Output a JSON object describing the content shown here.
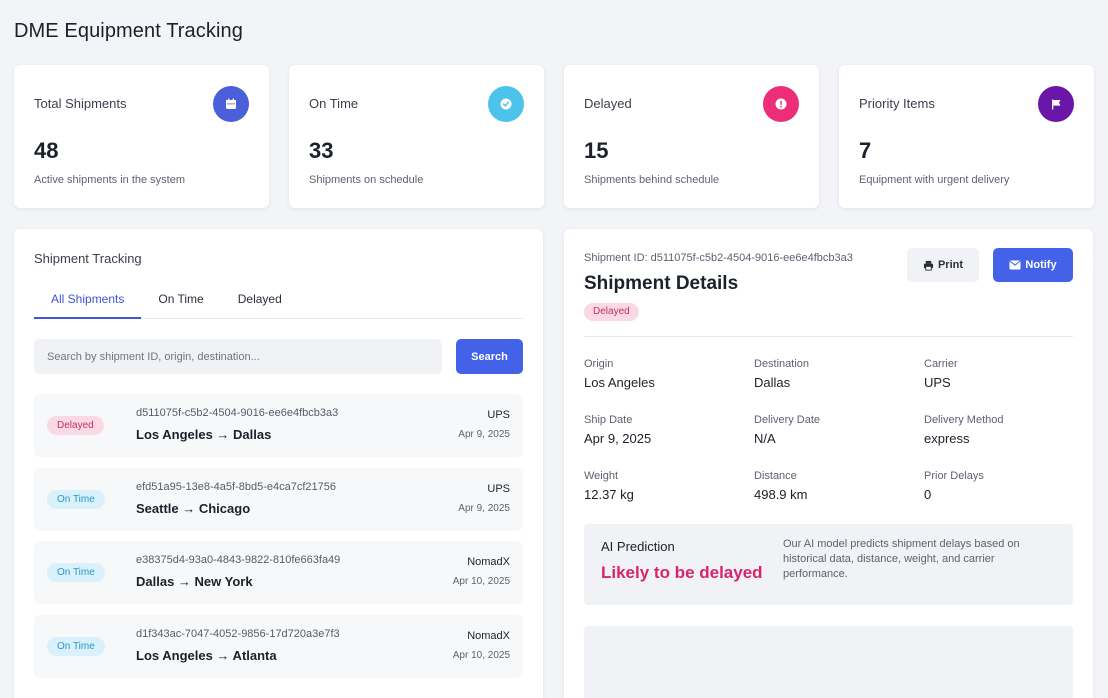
{
  "app": {
    "title": "DME Equipment Tracking"
  },
  "stats": [
    {
      "label": "Total Shipments",
      "value": "48",
      "desc": "Active shipments in the system",
      "icon": "calendar-icon",
      "color": "#4a5fd9"
    },
    {
      "label": "On Time",
      "value": "33",
      "desc": "Shipments on schedule",
      "icon": "check-circle-icon",
      "color": "#4cc3ea"
    },
    {
      "label": "Delayed",
      "value": "15",
      "desc": "Shipments behind schedule",
      "icon": "alert-circle-icon",
      "color": "#ec2e78"
    },
    {
      "label": "Priority Items",
      "value": "7",
      "desc": "Equipment with urgent delivery",
      "icon": "flag-icon",
      "color": "#6a16a8"
    }
  ],
  "tracking": {
    "title": "Shipment Tracking",
    "tabs": [
      "All Shipments",
      "On Time",
      "Delayed"
    ],
    "active_tab": "All Shipments",
    "search_placeholder": "Search by shipment ID, origin, destination...",
    "search_value": "",
    "search_button": "Search",
    "shipments": [
      {
        "status": "Delayed",
        "id": "d511075f-c5b2-4504-9016-ee6e4fbcb3a3",
        "route": "Los Angeles → Dallas",
        "carrier": "UPS",
        "date": "Apr 9, 2025"
      },
      {
        "status": "On Time",
        "id": "efd51a95-13e8-4a5f-8bd5-e4ca7cf21756",
        "route": "Seattle → Chicago",
        "carrier": "UPS",
        "date": "Apr 9, 2025"
      },
      {
        "status": "On Time",
        "id": "e38375d4-93a0-4843-9822-810fe663fa49",
        "route": "Dallas → New York",
        "carrier": "NomadX",
        "date": "Apr 10, 2025"
      },
      {
        "status": "On Time",
        "id": "d1f343ac-7047-4052-9856-17d720a3e7f3",
        "route": "Los Angeles → Atlanta",
        "carrier": "NomadX",
        "date": "Apr 10, 2025"
      }
    ]
  },
  "details": {
    "id_text": "Shipment ID: d511075f-c5b2-4504-9016-ee6e4fbcb3a3",
    "title": "Shipment Details",
    "status": "Delayed",
    "print_label": "Print",
    "notify_label": "Notify",
    "fields": [
      {
        "label": "Origin",
        "value": "Los Angeles"
      },
      {
        "label": "Destination",
        "value": "Dallas"
      },
      {
        "label": "Carrier",
        "value": "UPS"
      },
      {
        "label": "Ship Date",
        "value": "Apr 9, 2025"
      },
      {
        "label": "Delivery Date",
        "value": "N/A"
      },
      {
        "label": "Delivery Method",
        "value": "express"
      },
      {
        "label": "Weight",
        "value": "12.37 kg"
      },
      {
        "label": "Distance",
        "value": "498.9 km"
      },
      {
        "label": "Prior Delays",
        "value": "0"
      }
    ],
    "ai": {
      "title": "AI Prediction",
      "result": "Likely to be delayed",
      "description": "Our AI model predicts shipment delays based on historical data, distance, weight, and carrier performance."
    }
  }
}
